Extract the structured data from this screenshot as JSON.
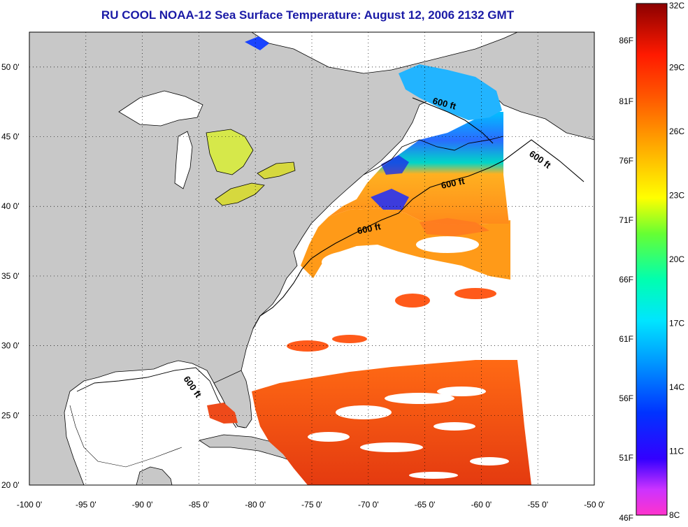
{
  "title": "RU COOL  NOAA-12  Sea Surface Temperature:  August 12, 2006 2132 GMT",
  "colors": {
    "land": "#c8c8c8",
    "cloud_mask": "#ffffff",
    "title": "#1a1aa6",
    "coastline": "#000000"
  },
  "map": {
    "lon_range": [
      -100,
      -50
    ],
    "lat_range": [
      20,
      52.5
    ],
    "x_ticks": [
      "-100 0'",
      "-95 0'",
      "-90 0'",
      "-85 0'",
      "-80 0'",
      "-75 0'",
      "-70 0'",
      "-65 0'",
      "-60 0'",
      "-55 0'",
      "-50 0'"
    ],
    "y_ticks": [
      "50 0'",
      "45 0'",
      "40 0'",
      "35 0'",
      "30 0'",
      "25 0'",
      "20 0'"
    ],
    "gridlines": "dotted",
    "contour_labels": [
      "600 ft",
      "600 ft",
      "600 ft",
      "600 ft",
      "600 ft"
    ]
  },
  "colorbar": {
    "celsius_ticks": [
      "32C",
      "29C",
      "26C",
      "23C",
      "20C",
      "17C",
      "14C",
      "11C",
      "8C"
    ],
    "fahrenheit_ticks": [
      "86F",
      "81F",
      "76F",
      "71F",
      "66F",
      "61F",
      "56F",
      "51F",
      "46F"
    ],
    "gradient_colors": [
      "#ff33cc",
      "#8a2be2",
      "#0000ff",
      "#0066ff",
      "#00ccff",
      "#00ffcc",
      "#66ff33",
      "#ffff00",
      "#ffaa00",
      "#ff5500",
      "#ff0000",
      "#990000"
    ]
  }
}
